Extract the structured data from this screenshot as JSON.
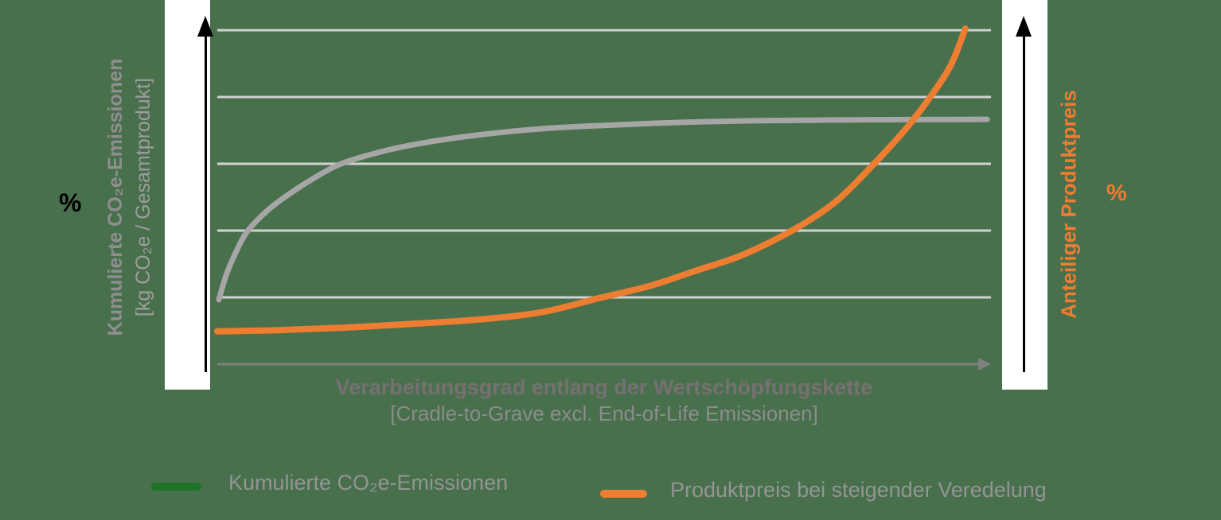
{
  "canvas": {
    "background": "#48704c"
  },
  "left_axis": {
    "percent_label": "%",
    "title_line1": "Kumulierte CO₂e-Emissionen",
    "title_line2": "[kg CO₂e / Gesamtprodukt]",
    "title_color": "#8f8f8f"
  },
  "right_axis": {
    "percent_label": "%",
    "title": "Anteiliger Produktpreis",
    "color": "#ED7D31"
  },
  "x_axis": {
    "title_line1": "Verarbeitungsgrad entlang der Wertschöpfungskette",
    "title_line2": "[Cradle-to-Grave excl. End-of-Life Emissionen]"
  },
  "legend": [
    {
      "swatch_color": "#1f7327",
      "label": "Kumulierte CO₂e-Emissionen"
    },
    {
      "swatch_color": "#ED7D31",
      "label": "Produktpreis bei steigender Veredelung"
    }
  ],
  "chart_data": {
    "type": "line",
    "title": "",
    "xlabel": "Verarbeitungsgrad entlang der Wertschöpfungskette [Cradle-to-Grave excl. End-of-Life Emissionen]",
    "ylabel_left": "Kumulierte CO₂e-Emissionen [kg CO₂e / Gesamtprodukt], %",
    "ylabel_right": "Anteiliger Produktpreis, %",
    "x_range": [
      0,
      1
    ],
    "y_range_percent": [
      0,
      100
    ],
    "gridlines_percent": [
      20,
      40,
      60,
      80,
      100
    ],
    "grid_color": "#d2d2d2",
    "axis_color": "#808080",
    "legend_position": "bottom",
    "series": [
      {
        "name": "Kumulierte CO₂e-Emissionen",
        "color": "#a6a6a6",
        "width": 7,
        "shape": "saturating growth (steep rise, then plateau ~73%)",
        "points": [
          [
            0.002,
            19.3
          ],
          [
            0.012,
            27.0
          ],
          [
            0.025,
            34.0
          ],
          [
            0.038,
            39.5
          ],
          [
            0.06,
            45.0
          ],
          [
            0.084,
            49.5
          ],
          [
            0.12,
            55.0
          ],
          [
            0.158,
            59.8
          ],
          [
            0.21,
            63.5
          ],
          [
            0.26,
            66.0
          ],
          [
            0.336,
            68.6
          ],
          [
            0.42,
            70.5
          ],
          [
            0.5,
            71.5
          ],
          [
            0.6,
            72.4
          ],
          [
            0.7,
            72.9
          ],
          [
            0.85,
            73.2
          ],
          [
            0.995,
            73.3
          ]
        ]
      },
      {
        "name": "Produktpreis bei steigender Veredelung",
        "color": "#ED7D31",
        "width": 8,
        "shape": "exponential growth (~10% to 100%)",
        "points": [
          [
            0.0,
            9.8
          ],
          [
            0.08,
            10.2
          ],
          [
            0.16,
            10.9
          ],
          [
            0.24,
            11.9
          ],
          [
            0.34,
            13.4
          ],
          [
            0.42,
            15.6
          ],
          [
            0.494,
            19.8
          ],
          [
            0.56,
            23.5
          ],
          [
            0.62,
            28.1
          ],
          [
            0.68,
            32.8
          ],
          [
            0.748,
            40.7
          ],
          [
            0.8,
            48.8
          ],
          [
            0.848,
            59.8
          ],
          [
            0.89,
            70.5
          ],
          [
            0.921,
            79.8
          ],
          [
            0.948,
            89.5
          ],
          [
            0.967,
            100.5
          ]
        ]
      }
    ]
  }
}
